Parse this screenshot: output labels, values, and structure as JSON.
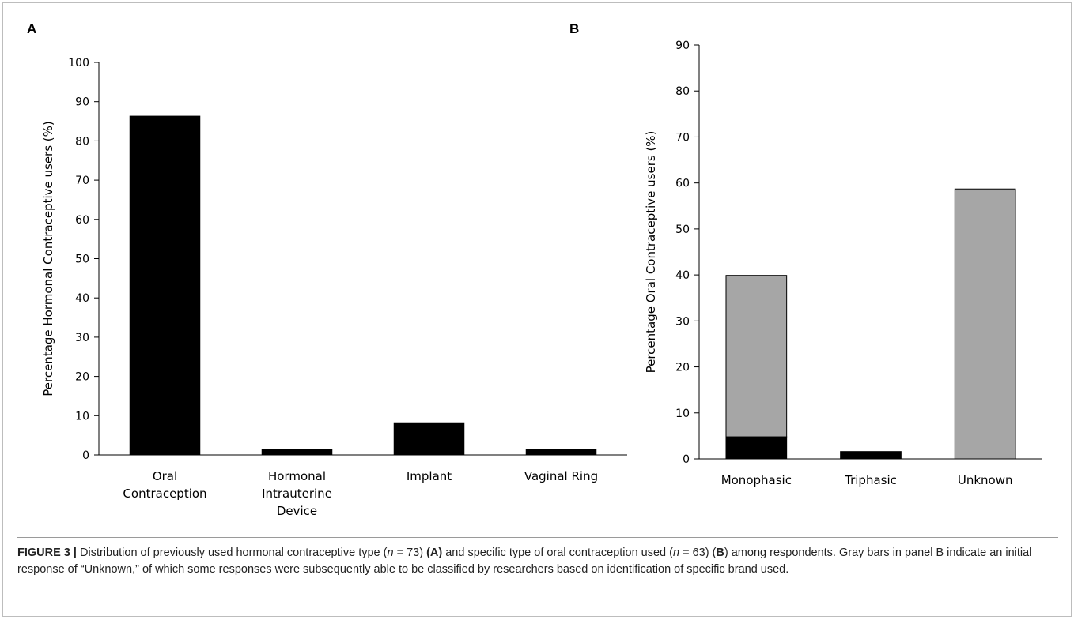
{
  "chart_data": [
    {
      "type": "bar",
      "panel": "A",
      "categories": [
        [
          "Oral",
          "Contraception"
        ],
        [
          "Hormonal",
          "Intrauterine",
          "Device"
        ],
        [
          "Implant"
        ],
        [
          "Vaginal Ring"
        ]
      ],
      "series": [
        {
          "values": [
            86.3,
            1.4,
            8.2,
            1.4
          ],
          "color": "#000000"
        }
      ],
      "ylabel": "Percentage Hormonal Contraceptive users (%)",
      "ylim": [
        0,
        100
      ],
      "yticks": [
        0,
        10,
        20,
        30,
        40,
        50,
        60,
        70,
        80,
        90,
        100
      ],
      "grid": false,
      "legend": "none"
    },
    {
      "type": "bar",
      "stacked": true,
      "panel": "B",
      "categories": [
        [
          "Monophasic"
        ],
        [
          "Triphasic"
        ],
        [
          "Unknown"
        ]
      ],
      "series": [
        {
          "values": [
            4.8,
            1.6,
            0
          ],
          "color": "#000000"
        },
        {
          "values": [
            35.1,
            0,
            58.7
          ],
          "color": "#a6a6a6"
        }
      ],
      "ylabel": "Percentage Oral Contraceptive users (%)",
      "ylim": [
        0,
        90
      ],
      "yticks": [
        0,
        10,
        20,
        30,
        40,
        50,
        60,
        70,
        80,
        90
      ],
      "grid": false,
      "legend": "none"
    }
  ],
  "caption": {
    "label": "FIGURE 3 |",
    "t1": " Distribution of previously used hormonal contraceptive type (",
    "n1": "n",
    "t2": " = 73) ",
    "a": "(A)",
    "t3": " and specific type of oral contraception used (",
    "n2": "n",
    "t4": " = 63) (",
    "b": "B",
    "t5": ") among respondents. Gray bars in panel B indicate an initial response of “Unknown,” of which some responses were subsequently able to be classified by researchers based on identification of specific brand used."
  }
}
